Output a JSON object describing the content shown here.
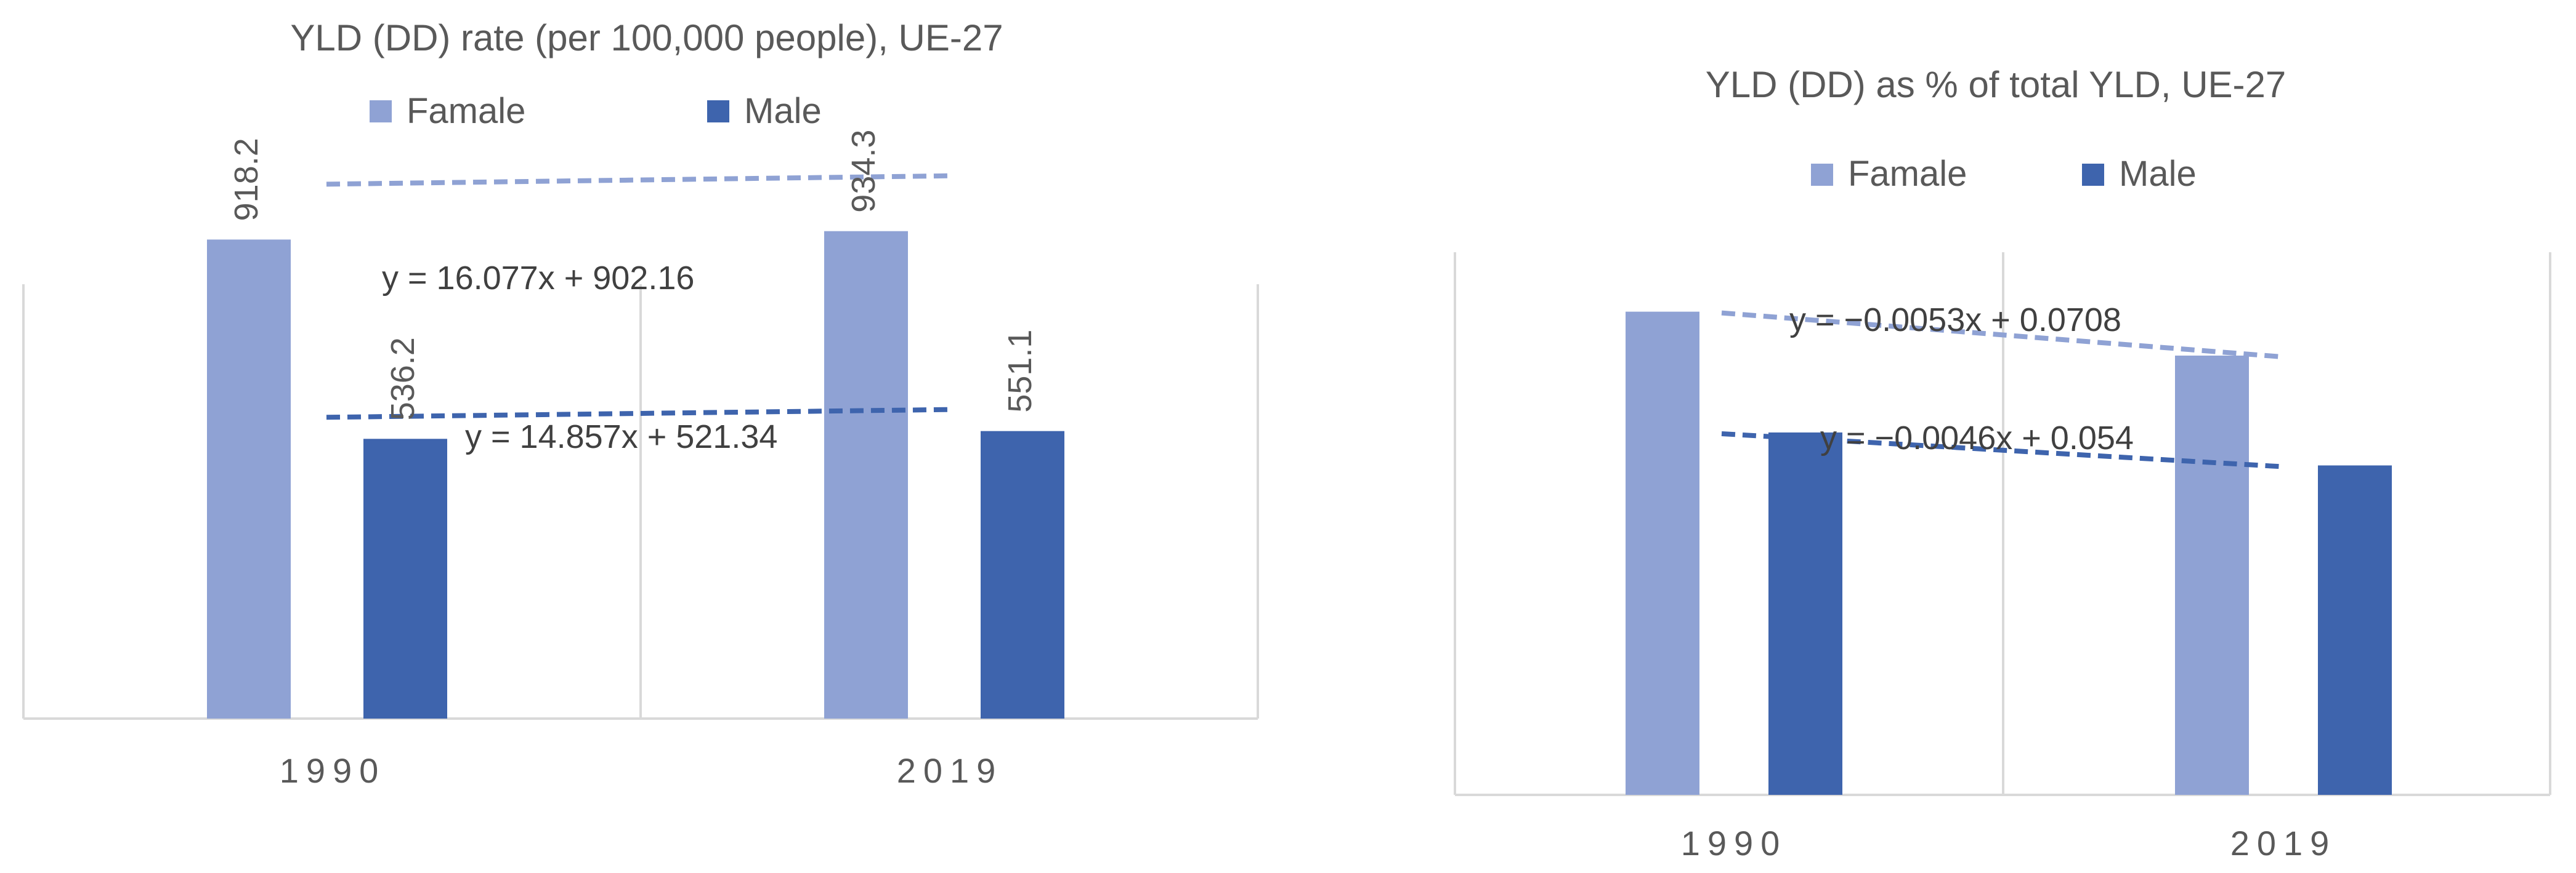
{
  "chart_data": [
    {
      "type": "bar",
      "title": "YLD (DD) rate (per 100,000 people), UE-27",
      "categories": [
        "1990",
        "2019"
      ],
      "series": [
        {
          "name": "Famale",
          "values": [
            918.2,
            934.3
          ],
          "data_labels": [
            "918.2",
            "934.3"
          ]
        },
        {
          "name": "Male",
          "values": [
            536.2,
            551.1
          ],
          "data_labels": [
            "536.2",
            "551.1"
          ]
        }
      ],
      "trendlines": [
        {
          "series": "Famale",
          "equation": "y = 16.077x + 902.16"
        },
        {
          "series": "Male",
          "equation": "y = 14.857x + 521.34"
        }
      ],
      "ylim": [
        0,
        1000
      ],
      "legend": "top",
      "grid": "vertical"
    },
    {
      "type": "bar",
      "title": "YLD (DD) as % of total YLD, UE-27",
      "categories": [
        "1990",
        "2019"
      ],
      "series": [
        {
          "name": "Famale",
          "values": [
            0.066,
            0.06
          ]
        },
        {
          "name": "Male",
          "values": [
            0.0495,
            0.045
          ]
        }
      ],
      "trendlines": [
        {
          "series": "Famale",
          "equation": "y = −0.0053x + 0.0708"
        },
        {
          "series": "Male",
          "equation": "y = −0.0046x + 0.054"
        }
      ],
      "ylim": [
        0,
        0.08
      ],
      "legend": "top",
      "grid": "vertical"
    }
  ],
  "colors": {
    "famale": "#8fa2d4",
    "male": "#3e64ad",
    "famale_trend": "#8fa2d4",
    "male_trend": "#3e64ad"
  }
}
